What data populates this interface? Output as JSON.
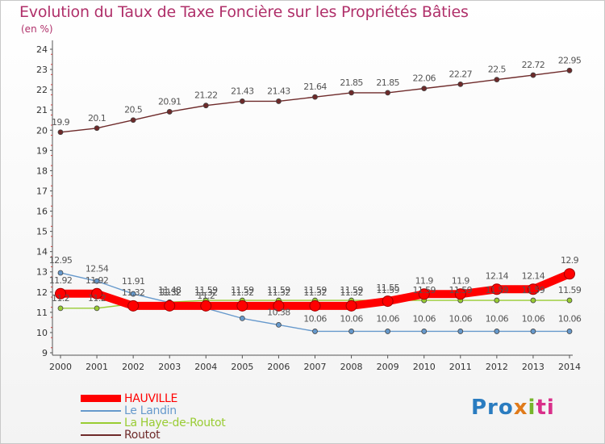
{
  "title": "Evolution du Taux de Taxe Foncière sur les Propriétés Bâties",
  "unit": "(en %)",
  "logo": {
    "a": "Pro",
    "b": "x",
    "c": "i",
    "d": "ti"
  },
  "chart_data": {
    "type": "line",
    "title": "Evolution du Taux de Taxe Foncière sur les Propriétés Bâties",
    "ylabel": "(en %)",
    "xlabel": "",
    "ylim": [
      9,
      24
    ],
    "yticks": [
      9,
      10,
      11,
      12,
      13,
      14,
      15,
      16,
      17,
      18,
      19,
      20,
      21,
      22,
      23,
      24
    ],
    "grid": false,
    "legend": "bottom-left",
    "categories": [
      "2000",
      "2001",
      "2002",
      "2003",
      "2004",
      "2005",
      "2006",
      "2007",
      "2008",
      "2009",
      "2010",
      "2011",
      "2012",
      "2013",
      "2014"
    ],
    "series": [
      {
        "name": "HAUVILLE",
        "color": "#ff0000",
        "values": [
          11.92,
          11.92,
          11.32,
          11.32,
          11.32,
          11.32,
          11.32,
          11.32,
          11.32,
          11.55,
          11.9,
          11.9,
          12.14,
          12.14,
          12.9
        ],
        "labels": [
          "11.92",
          "11.92",
          "11.32",
          "11.32",
          "11.32",
          "11.32",
          "11.32",
          "11.32",
          "11.32",
          "11.55",
          "11.9",
          "11.9",
          "12.14",
          "12.14",
          "12.9"
        ]
      },
      {
        "name": "Le Landin",
        "color": "#6699cc",
        "values": [
          12.95,
          12.54,
          11.91,
          11.48,
          11.2,
          10.7,
          10.38,
          10.06,
          10.06,
          10.06,
          10.06,
          10.06,
          10.06,
          10.06,
          10.06
        ],
        "labels": [
          "12.95",
          "12.54",
          "11.91",
          "11.48",
          "11.2",
          "",
          "10.38",
          "10.06",
          "10.06",
          "10.06",
          "10.06",
          "10.06",
          "10.06",
          "10.06",
          "10.06"
        ]
      },
      {
        "name": "La Haye-de-Routot",
        "color": "#99cc33",
        "values": [
          11.2,
          11.2,
          11.42,
          11.5,
          11.59,
          11.59,
          11.59,
          11.59,
          11.59,
          11.59,
          11.59,
          11.59,
          11.59,
          11.59,
          11.59
        ],
        "labels": [
          "11.2",
          "11.2",
          "",
          "11.5",
          "11.59",
          "11.59",
          "11.59",
          "11.59",
          "11.59",
          "11.59",
          "11.59",
          "11.59",
          "11.59",
          "11.59",
          "11.59"
        ]
      },
      {
        "name": "Routot",
        "color": "#6e2a2a",
        "values": [
          19.9,
          20.1,
          20.5,
          20.91,
          21.22,
          21.43,
          21.43,
          21.64,
          21.85,
          21.85,
          22.06,
          22.27,
          22.5,
          22.72,
          22.95
        ],
        "labels": [
          "19.9",
          "20.1",
          "20.5",
          "20.91",
          "21.22",
          "21.43",
          "21.43",
          "21.64",
          "21.85",
          "21.85",
          "22.06",
          "22.27",
          "22.5",
          "22.72",
          "22.95"
        ]
      }
    ]
  }
}
